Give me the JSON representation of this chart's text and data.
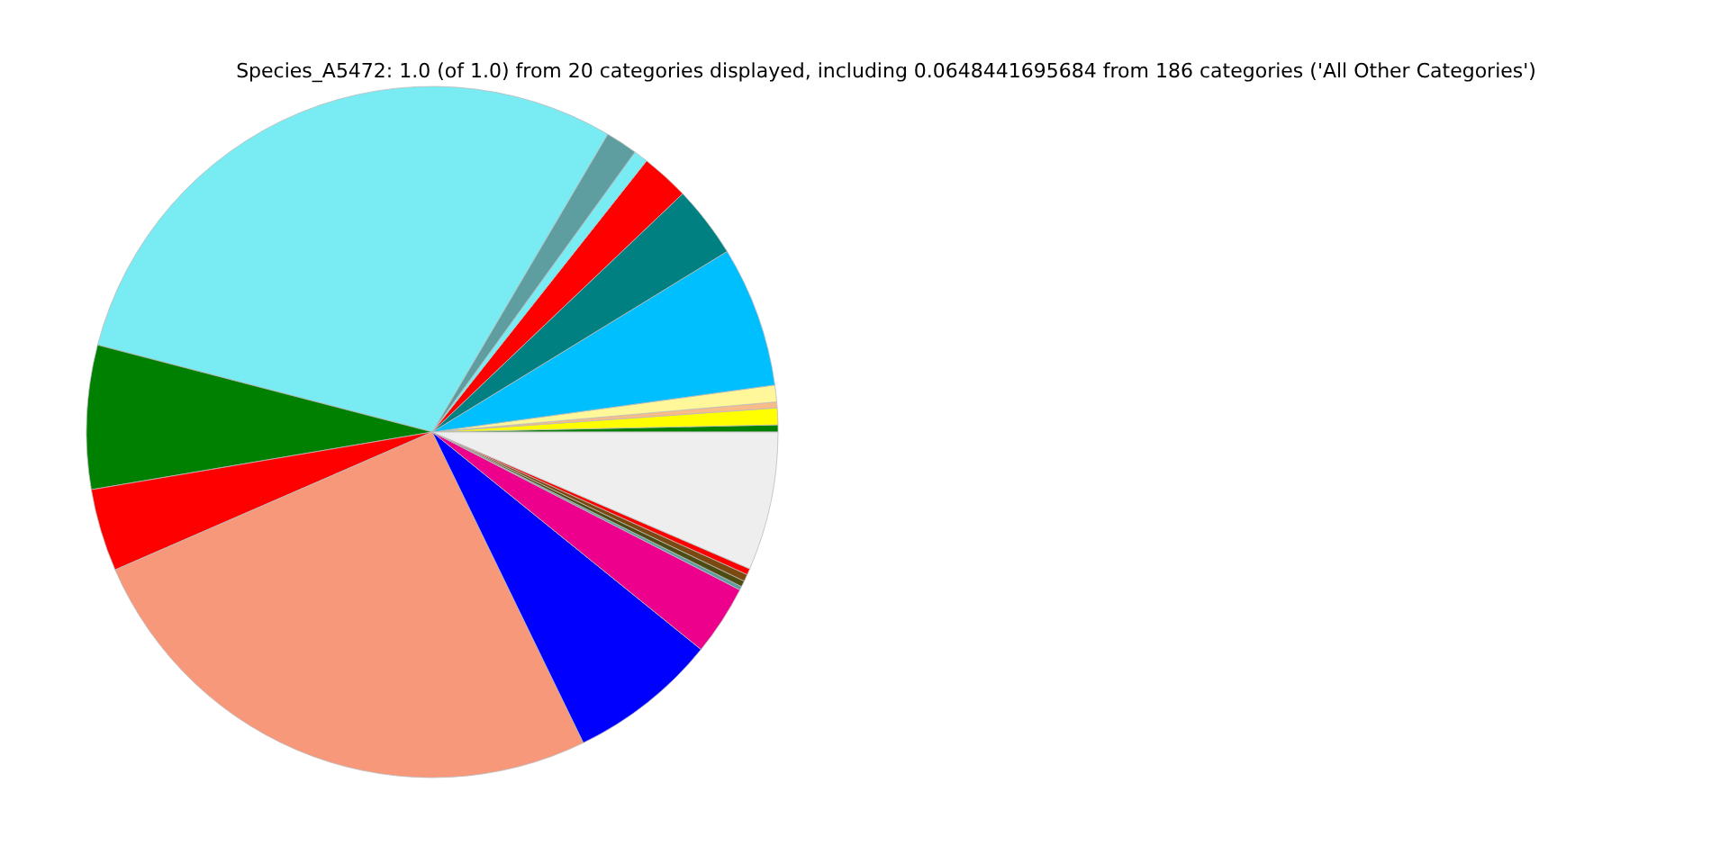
{
  "chart_data": {
    "type": "pie",
    "title": "Species_A5472: 1.0 (of 1.0) from 20 categories displayed, including 0.0648441695684 from 186 categories ('All Other Categories')",
    "categories": [
      null,
      null,
      null,
      null,
      null,
      null,
      null,
      null,
      null,
      null,
      null,
      null,
      null,
      null,
      null,
      null,
      null,
      null,
      null,
      null
    ],
    "values": [
      0.33,
      0.78,
      0.28,
      0.78,
      6.58,
      3.36,
      2.25,
      0.67,
      1.5,
      29.42,
      6.72,
      3.86,
      25.67,
      6.97,
      3.28,
      0.17,
      0.28,
      0.33,
      0.29,
      6.48
    ],
    "colors": [
      "#008000",
      "#ffff00",
      "#f9bb88",
      "#fff799",
      "#00bfff",
      "#008080",
      "#ff0000",
      "#79ebf2",
      "#5f9ea0",
      "#79ebf2",
      "#008000",
      "#ff0000",
      "#f7987a",
      "#0000ff",
      "#ec008c",
      "#5f9ea0",
      "#4b4b12",
      "#7a4a10",
      "#ff0000",
      "#eeeeee"
    ]
  }
}
